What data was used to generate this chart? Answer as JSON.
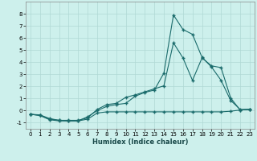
{
  "title": "",
  "xlabel": "Humidex (Indice chaleur)",
  "bg_color": "#cdf0ec",
  "grid_color": "#b0d8d4",
  "line_color": "#1a6b6b",
  "xlim": [
    -0.5,
    23.5
  ],
  "ylim": [
    -1.5,
    9.0
  ],
  "xticks": [
    0,
    1,
    2,
    3,
    4,
    5,
    6,
    7,
    8,
    9,
    10,
    11,
    12,
    13,
    14,
    15,
    16,
    17,
    18,
    19,
    20,
    21,
    22,
    23
  ],
  "yticks": [
    -1,
    0,
    1,
    2,
    3,
    4,
    5,
    6,
    7,
    8
  ],
  "series1_x": [
    0,
    1,
    2,
    3,
    4,
    5,
    6,
    7,
    8,
    9,
    10,
    11,
    12,
    13,
    14,
    15,
    16,
    17,
    18,
    19,
    20,
    21,
    22,
    23
  ],
  "series1_y": [
    -0.3,
    -0.4,
    -0.7,
    -0.8,
    -0.85,
    -0.85,
    -0.7,
    -0.2,
    -0.1,
    -0.1,
    -0.1,
    -0.1,
    -0.1,
    -0.1,
    -0.1,
    -0.1,
    -0.1,
    -0.1,
    -0.1,
    -0.1,
    -0.1,
    -0.05,
    0.05,
    0.1
  ],
  "series2_x": [
    0,
    1,
    2,
    3,
    4,
    5,
    6,
    7,
    8,
    9,
    10,
    11,
    12,
    13,
    14,
    15,
    16,
    17,
    18,
    19,
    20,
    21,
    22,
    23
  ],
  "series2_y": [
    -0.3,
    -0.4,
    -0.75,
    -0.85,
    -0.85,
    -0.85,
    -0.5,
    0.0,
    0.35,
    0.5,
    0.6,
    1.2,
    1.5,
    1.7,
    3.1,
    7.9,
    6.7,
    6.3,
    4.4,
    3.6,
    2.5,
    0.85,
    0.1,
    0.1
  ],
  "series3_x": [
    0,
    1,
    2,
    3,
    4,
    5,
    6,
    7,
    8,
    9,
    10,
    11,
    12,
    13,
    14,
    15,
    16,
    17,
    18,
    19,
    20,
    21,
    22,
    23
  ],
  "series3_y": [
    -0.3,
    -0.35,
    -0.65,
    -0.8,
    -0.8,
    -0.8,
    -0.6,
    0.1,
    0.5,
    0.6,
    1.1,
    1.3,
    1.55,
    1.8,
    2.05,
    5.6,
    4.35,
    2.5,
    4.35,
    3.7,
    3.55,
    1.05,
    0.05,
    0.1
  ],
  "xlabel_fontsize": 6,
  "tick_fontsize": 5
}
